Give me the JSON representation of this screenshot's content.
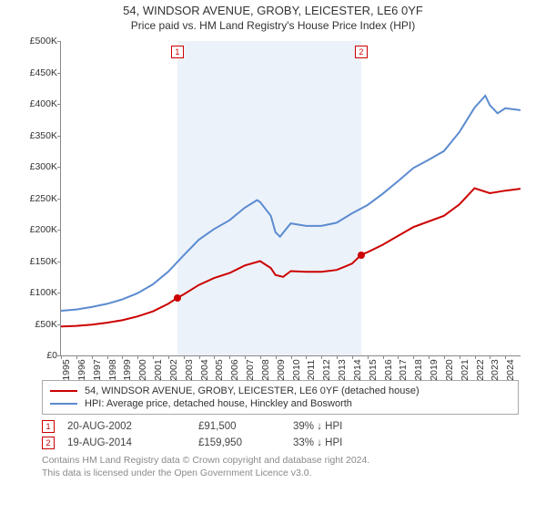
{
  "title_line1": "54, WINDSOR AVENUE, GROBY, LEICESTER, LE6 0YF",
  "title_line2": "Price paid vs. HM Land Registry's House Price Index (HPI)",
  "chart": {
    "type": "line",
    "background_color": "#ffffff",
    "shaded_band_color": "rgba(220,232,246,0.55)",
    "ylim": [
      0,
      500000
    ],
    "ytick_step": 50000,
    "ytick_format_prefix": "£",
    "ytick_format_suffix": "K",
    "xlim_years": [
      1995,
      2025
    ],
    "xtick_years": [
      1995,
      1996,
      1997,
      1998,
      1999,
      2000,
      2001,
      2002,
      2003,
      2004,
      2005,
      2006,
      2007,
      2008,
      2009,
      2010,
      2011,
      2012,
      2013,
      2014,
      2015,
      2016,
      2017,
      2018,
      2019,
      2020,
      2021,
      2022,
      2023,
      2024
    ],
    "yticks": [
      {
        "v": 0,
        "label": "£0"
      },
      {
        "v": 50000,
        "label": "£50K"
      },
      {
        "v": 100000,
        "label": "£100K"
      },
      {
        "v": 150000,
        "label": "£150K"
      },
      {
        "v": 200000,
        "label": "£200K"
      },
      {
        "v": 250000,
        "label": "£250K"
      },
      {
        "v": 300000,
        "label": "£300K"
      },
      {
        "v": 350000,
        "label": "£350K"
      },
      {
        "v": 400000,
        "label": "£400K"
      },
      {
        "v": 450000,
        "label": "£450K"
      },
      {
        "v": 500000,
        "label": "£500K"
      }
    ],
    "shaded_range_years": [
      2002.6,
      2014.6
    ],
    "series": [
      {
        "id": "property",
        "label": "54, WINDSOR AVENUE, GROBY, LEICESTER, LE6 0YF (detached house)",
        "color": "#cc0000",
        "line_width": 2,
        "data": [
          [
            1995.0,
            46000
          ],
          [
            1996.0,
            47000
          ],
          [
            1997.0,
            49000
          ],
          [
            1998.0,
            52000
          ],
          [
            1999.0,
            56000
          ],
          [
            2000.0,
            62000
          ],
          [
            2001.0,
            70000
          ],
          [
            2002.0,
            82000
          ],
          [
            2002.6,
            91500
          ],
          [
            2003.0,
            97000
          ],
          [
            2004.0,
            112000
          ],
          [
            2005.0,
            123000
          ],
          [
            2006.0,
            131000
          ],
          [
            2007.0,
            143000
          ],
          [
            2008.0,
            150000
          ],
          [
            2008.7,
            139000
          ],
          [
            2009.0,
            128000
          ],
          [
            2009.5,
            125000
          ],
          [
            2010.0,
            134000
          ],
          [
            2011.0,
            133000
          ],
          [
            2012.0,
            133000
          ],
          [
            2013.0,
            136000
          ],
          [
            2014.0,
            146000
          ],
          [
            2014.6,
            159950
          ],
          [
            2015.0,
            164000
          ],
          [
            2016.0,
            176000
          ],
          [
            2017.0,
            190000
          ],
          [
            2018.0,
            204000
          ],
          [
            2019.0,
            213000
          ],
          [
            2020.0,
            222000
          ],
          [
            2021.0,
            240000
          ],
          [
            2022.0,
            266000
          ],
          [
            2023.0,
            258000
          ],
          [
            2024.0,
            262000
          ],
          [
            2025.0,
            265000
          ]
        ]
      },
      {
        "id": "hpi",
        "label": "HPI: Average price, detached house, Hinckley and Bosworth",
        "color": "#5b8bd0",
        "line_width": 2,
        "data": [
          [
            1995.0,
            71000
          ],
          [
            1996.0,
            73000
          ],
          [
            1997.0,
            77000
          ],
          [
            1998.0,
            82000
          ],
          [
            1999.0,
            89000
          ],
          [
            2000.0,
            99000
          ],
          [
            2001.0,
            113000
          ],
          [
            2002.0,
            133000
          ],
          [
            2003.0,
            159000
          ],
          [
            2004.0,
            184000
          ],
          [
            2005.0,
            201000
          ],
          [
            2006.0,
            215000
          ],
          [
            2007.0,
            235000
          ],
          [
            2007.8,
            247000
          ],
          [
            2008.0,
            244000
          ],
          [
            2008.7,
            222000
          ],
          [
            2009.0,
            196000
          ],
          [
            2009.3,
            189000
          ],
          [
            2010.0,
            210000
          ],
          [
            2011.0,
            206000
          ],
          [
            2012.0,
            206000
          ],
          [
            2013.0,
            211000
          ],
          [
            2014.0,
            226000
          ],
          [
            2015.0,
            239000
          ],
          [
            2016.0,
            257000
          ],
          [
            2017.0,
            277000
          ],
          [
            2018.0,
            298000
          ],
          [
            2019.0,
            311000
          ],
          [
            2020.0,
            325000
          ],
          [
            2021.0,
            355000
          ],
          [
            2022.0,
            394000
          ],
          [
            2022.7,
            413000
          ],
          [
            2023.0,
            398000
          ],
          [
            2023.5,
            385000
          ],
          [
            2024.0,
            393000
          ],
          [
            2025.0,
            390000
          ]
        ]
      }
    ],
    "sale_markers": [
      {
        "n": 1,
        "year_frac": 2002.6,
        "value": 91500
      },
      {
        "n": 2,
        "year_frac": 2014.6,
        "value": 159950
      }
    ],
    "label_fontsize": 10.5,
    "axis_color": "#888888"
  },
  "legend": [
    {
      "series": "property",
      "text": "54, WINDSOR AVENUE, GROBY, LEICESTER, LE6 0YF (detached house)",
      "color": "#cc0000"
    },
    {
      "series": "hpi",
      "text": "HPI: Average price, detached house, Hinckley and Bosworth",
      "color": "#5b8bd0"
    }
  ],
  "sales": [
    {
      "n": "1",
      "date": "20-AUG-2002",
      "price": "£91,500",
      "diff": "39% ↓ HPI"
    },
    {
      "n": "2",
      "date": "19-AUG-2014",
      "price": "£159,950",
      "diff": "33% ↓ HPI"
    }
  ],
  "footer_line1": "Contains HM Land Registry data © Crown copyright and database right 2024.",
  "footer_line2": "This data is licensed under the Open Government Licence v3.0."
}
